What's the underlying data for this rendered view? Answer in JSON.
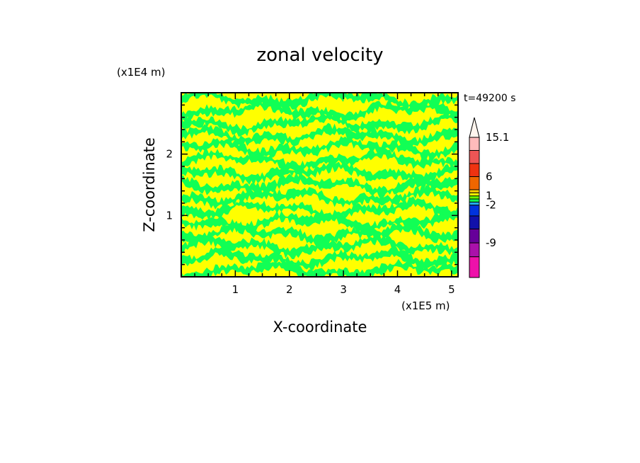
{
  "chart_data": {
    "type": "heatmap",
    "title": "zonal velocity",
    "xlabel": "X-coordinate",
    "ylabel": "Z-coordinate",
    "x_scale_label": "(x1E5 m)",
    "y_scale_label": "(x1E4 m)",
    "time_label": "t=49200 s",
    "xlim": [
      0,
      5.12
    ],
    "ylim": [
      0,
      3.0
    ],
    "x_ticks": [
      1,
      2,
      3,
      4,
      5
    ],
    "x_tick_labels": [
      "1",
      "2",
      "3",
      "4",
      "5"
    ],
    "y_ticks": [
      1,
      2
    ],
    "y_tick_labels": [
      "1",
      "2"
    ],
    "field_colors": [
      "#ffff00",
      "#11ff55"
    ],
    "field_description_colors": {
      "high": "#ffff00",
      "low": "#11ff55"
    },
    "colorbar": {
      "labels": [
        "15.1",
        "6",
        "1",
        "-2",
        "-9"
      ],
      "label_values": [
        15.1,
        6,
        1,
        -2,
        -9
      ],
      "levels": [
        -15,
        -12,
        -9,
        -6,
        -3,
        -2,
        -1,
        0,
        1,
        2,
        3,
        6,
        9,
        12,
        15.1
      ],
      "colors": [
        "#ee11aa",
        "#aa11aa",
        "#660099",
        "#1111aa",
        "#0033dd",
        "#22aaee",
        "#11ff55",
        "#66ff00",
        "#ffff00",
        "#ffcc00",
        "#ee6600",
        "#ee3311",
        "#ee5555",
        "#ffbbbb"
      ],
      "extend": "max"
    }
  }
}
